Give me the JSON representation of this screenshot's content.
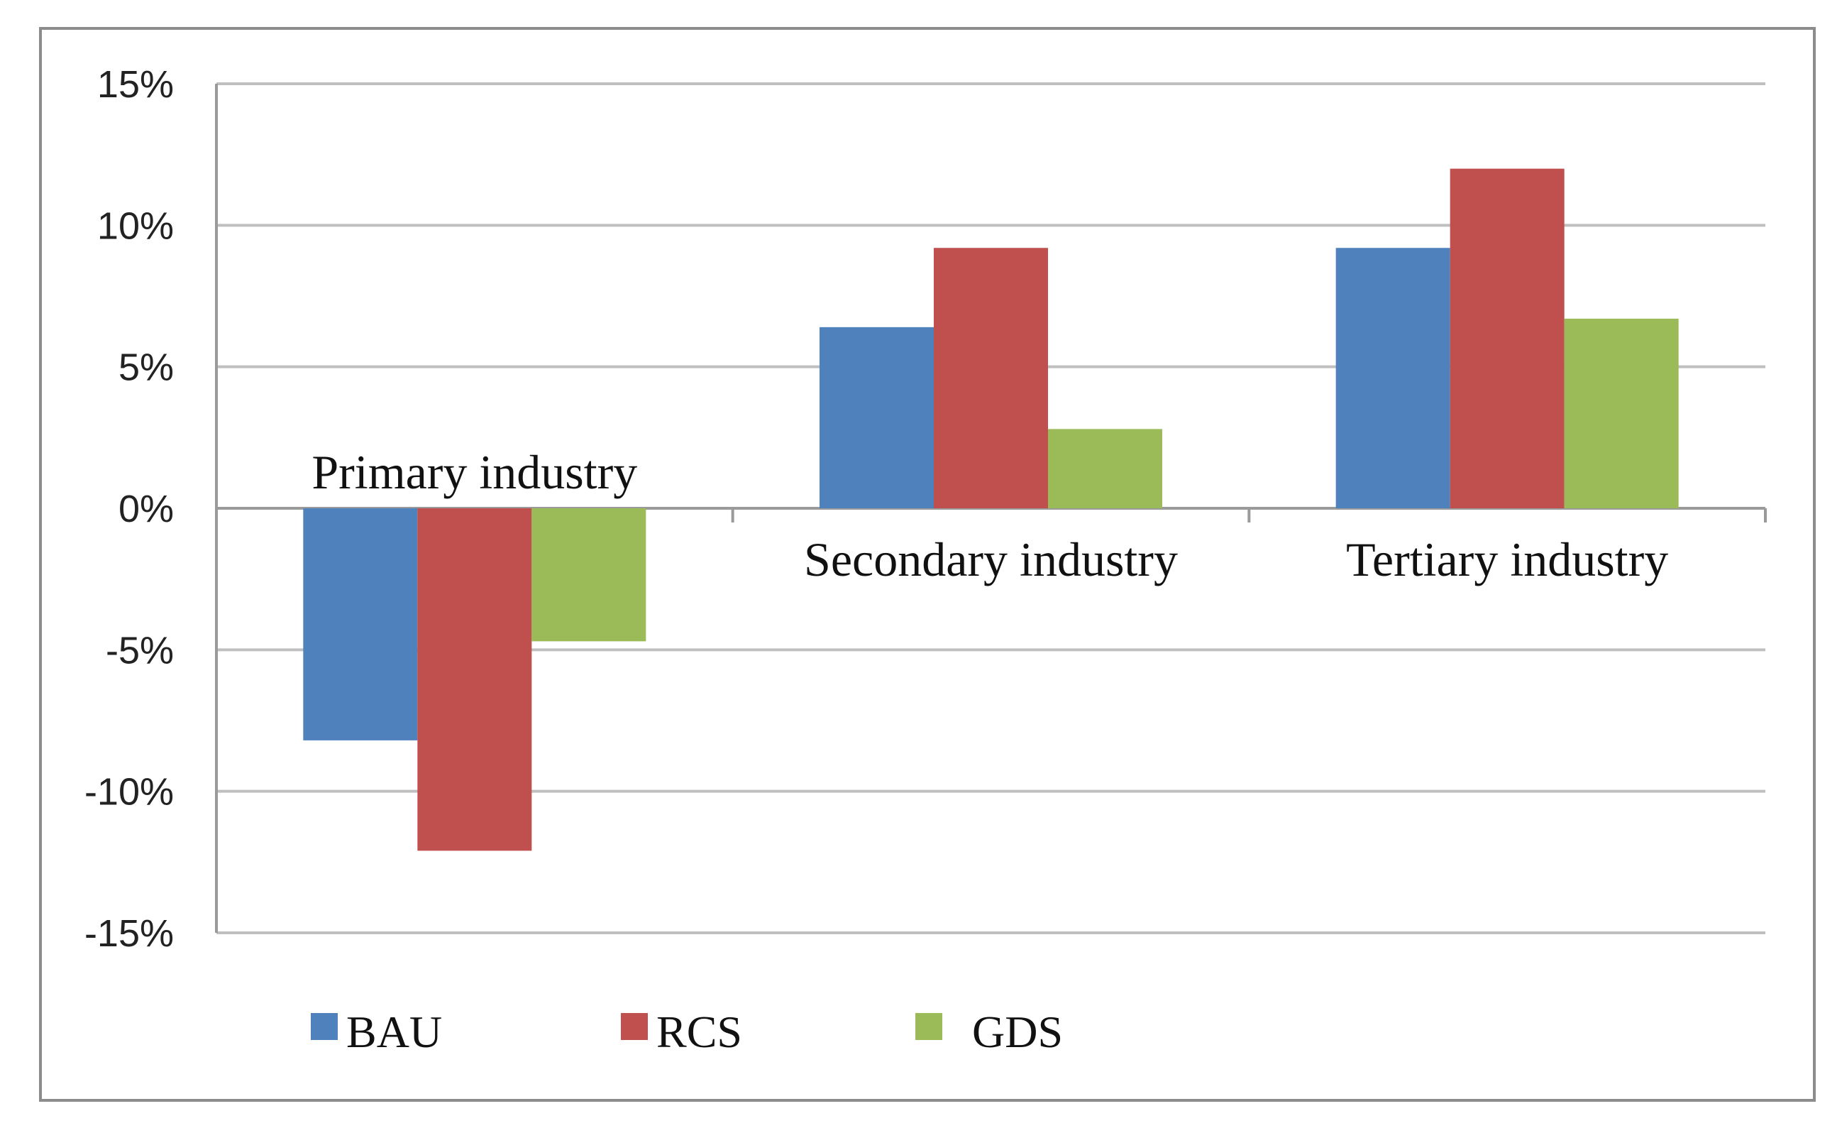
{
  "chart_data": {
    "type": "bar",
    "title": "",
    "xlabel": "",
    "ylabel": "",
    "categories": [
      "Primary industry",
      "Secondary industry",
      "Tertiary industry"
    ],
    "series": [
      {
        "name": "BAU",
        "values": [
          -8.2,
          6.4,
          9.2
        ]
      },
      {
        "name": "RCS",
        "values": [
          -12.1,
          9.2,
          12.0
        ]
      },
      {
        "name": "GDS",
        "values": [
          -4.7,
          2.8,
          6.7
        ]
      }
    ],
    "ylim": [
      -15,
      15
    ],
    "yticks": [
      15,
      10,
      5,
      0,
      -5,
      -10,
      -15
    ],
    "ytick_labels": [
      "15%",
      "10%",
      "5%",
      "0%",
      "-5%",
      "-10%",
      "-15%"
    ],
    "grid": true,
    "legend_position": "bottom-left",
    "colors": {
      "BAU": "#4f81bd",
      "RCS": "#c0504d",
      "GDS": "#9bbb59",
      "grid": "#bfbfbf"
    }
  }
}
